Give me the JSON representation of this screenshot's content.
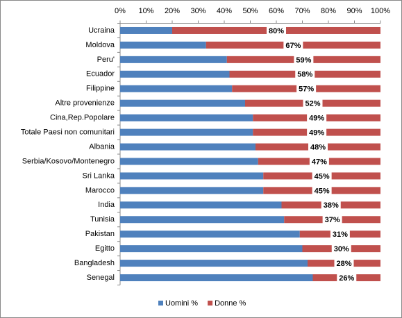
{
  "chart_data": {
    "type": "stacked-bar-horizontal",
    "categories": [
      "Ucraina",
      "Moldova",
      "Peru'",
      "Ecuador",
      "Filippine",
      "Altre provenienze",
      "Cina,Rep.Popolare",
      "Totale Paesi non comunitari",
      "Albania",
      "Serbia/Kosovo/Montenegro",
      "Sri Lanka",
      "Marocco",
      "India",
      "Tunisia",
      "Pakistan",
      "Egitto",
      "Bangladesh",
      "Senegal"
    ],
    "series": [
      {
        "name": "Uomini %",
        "color": "#4f81bd",
        "values": [
          20,
          33,
          41,
          42,
          43,
          48,
          51,
          51,
          52,
          53,
          55,
          55,
          62,
          63,
          69,
          70,
          72,
          74
        ]
      },
      {
        "name": "Donne %",
        "color": "#c0504d",
        "values": [
          80,
          67,
          59,
          58,
          57,
          52,
          49,
          49,
          48,
          47,
          45,
          45,
          38,
          37,
          31,
          30,
          28,
          26
        ],
        "value_labels": [
          "80%",
          "67%",
          "59%",
          "58%",
          "57%",
          "52%",
          "49%",
          "49%",
          "48%",
          "47%",
          "45%",
          "45%",
          "38%",
          "37%",
          "31%",
          "30%",
          "28%",
          "26%"
        ]
      }
    ],
    "xlim": [
      0,
      100
    ],
    "xticks": [
      {
        "value": 0,
        "label": "0%"
      },
      {
        "value": 10,
        "label": "10%"
      },
      {
        "value": 20,
        "label": "20%"
      },
      {
        "value": 30,
        "label": "30%"
      },
      {
        "value": 40,
        "label": "40%"
      },
      {
        "value": 50,
        "label": "50%"
      },
      {
        "value": 60,
        "label": "60%"
      },
      {
        "value": 70,
        "label": "70%"
      },
      {
        "value": 80,
        "label": "80%"
      },
      {
        "value": 90,
        "label": "90%"
      },
      {
        "value": 100,
        "label": "100%"
      }
    ],
    "legend": "bottom"
  }
}
